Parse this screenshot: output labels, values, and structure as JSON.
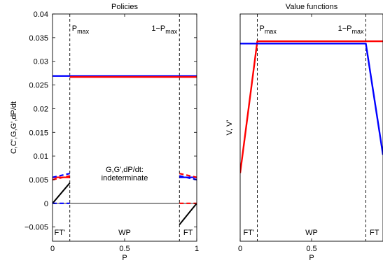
{
  "chart_data": [
    {
      "type": "line",
      "title": "Policies",
      "xlabel": "P",
      "ylabel": "C,C',G,G',dP/dt",
      "xlim": [
        0,
        1
      ],
      "ylim": [
        -0.008,
        0.04
      ],
      "xticks": [
        "0",
        "0.5",
        "1"
      ],
      "yticks": [
        {
          "v": -0.005,
          "label": "−0.005"
        },
        {
          "v": 0,
          "label": "0"
        },
        {
          "v": 0.005,
          "label": "0.005"
        },
        {
          "v": 0.01,
          "label": "0.01"
        },
        {
          "v": 0.015,
          "label": "0.015"
        },
        {
          "v": 0.02,
          "label": "0.02"
        },
        {
          "v": 0.025,
          "label": "0.025"
        },
        {
          "v": 0.03,
          "label": "0.03"
        },
        {
          "v": 0.035,
          "label": "0.035"
        },
        {
          "v": 0.04,
          "label": "0.04"
        }
      ],
      "grid": false,
      "vlines": [
        0.12,
        0.88
      ],
      "vline_labels": {
        "left": "P",
        "left_sub": "max",
        "right": "1−P",
        "right_sub": "max"
      },
      "annotation": [
        "G,G',dP/dt:",
        "indeterminate"
      ],
      "annotation_at": [
        0.5,
        0.0066
      ],
      "regions": [
        {
          "label": "FT'",
          "x": 0.05
        },
        {
          "label": "WP",
          "x": 0.5
        },
        {
          "label": "FT",
          "x": 0.94
        }
      ],
      "series": [
        {
          "color": "#0000ff",
          "width": 2.4,
          "dash": false,
          "x": [
            0,
            1
          ],
          "y": [
            0.0269,
            0.0269
          ]
        },
        {
          "color": "#ff0000",
          "width": 2.4,
          "dash": false,
          "x": [
            0.12,
            1
          ],
          "y": [
            0.0267,
            0.0267
          ]
        },
        {
          "color": "#ff0000",
          "width": 2.2,
          "dash": false,
          "x": [
            0,
            0.12
          ],
          "y": [
            0.0055,
            0.0055
          ]
        },
        {
          "color": "#0000ff",
          "width": 2.2,
          "dash": false,
          "x": [
            0.88,
            1
          ],
          "y": [
            0.0055,
            0.0055
          ]
        },
        {
          "color": "#0000ff",
          "width": 2.2,
          "dash": true,
          "x": [
            0,
            0.12
          ],
          "y": [
            0.0055,
            0.0063
          ]
        },
        {
          "color": "#ff0000",
          "width": 2.2,
          "dash": true,
          "x": [
            0,
            0.12
          ],
          "y": [
            0.005,
            0.0058
          ]
        },
        {
          "color": "#ff0000",
          "width": 2.2,
          "dash": true,
          "x": [
            0.88,
            1
          ],
          "y": [
            0.0063,
            0.0055
          ]
        },
        {
          "color": "#0000ff",
          "width": 2.2,
          "dash": true,
          "x": [
            0.88,
            1
          ],
          "y": [
            0.0058,
            0.005
          ]
        },
        {
          "color": "#000000",
          "width": 0.8,
          "dash": false,
          "x": [
            0,
            1
          ],
          "y": [
            0,
            0
          ]
        },
        {
          "color": "#000000",
          "width": 2.0,
          "dash": false,
          "x": [
            0,
            0.12
          ],
          "y": [
            0,
            0.0043
          ]
        },
        {
          "color": "#000000",
          "width": 2.0,
          "dash": false,
          "x": [
            0.88,
            1
          ],
          "y": [
            -0.0045,
            0
          ]
        },
        {
          "color": "#0000ff",
          "width": 2.2,
          "dash": true,
          "x": [
            0,
            0.12
          ],
          "y": [
            0,
            0
          ]
        },
        {
          "color": "#ff0000",
          "width": 2.2,
          "dash": true,
          "x": [
            0.88,
            1
          ],
          "y": [
            0,
            0
          ]
        }
      ]
    },
    {
      "type": "line",
      "title": "Value functions",
      "xlabel": "P",
      "ylabel": "V, V'",
      "xlim": [
        0,
        1
      ],
      "ylim": [
        0,
        1
      ],
      "xticks": [
        "0",
        "0.5"
      ],
      "yticks": [],
      "grid": false,
      "vlines": [
        0.12,
        0.88
      ],
      "vline_labels": {
        "left": "P",
        "left_sub": "max",
        "right": "1−P",
        "right_sub": "max"
      },
      "regions": [
        {
          "label": "FT'",
          "x": 0.06
        },
        {
          "label": "WP",
          "x": 0.5
        },
        {
          "label": "FT",
          "x": 0.94
        }
      ],
      "series": [
        {
          "color": "#ff0000",
          "width": 2.4,
          "dash": false,
          "x": [
            0,
            0.12,
            1
          ],
          "y": [
            0.3,
            0.88,
            0.88
          ]
        },
        {
          "color": "#0000ff",
          "width": 2.4,
          "dash": false,
          "x": [
            0,
            0.12,
            0.88,
            1
          ],
          "y": [
            0.87,
            0.87,
            0.87,
            0.38
          ]
        }
      ]
    }
  ]
}
